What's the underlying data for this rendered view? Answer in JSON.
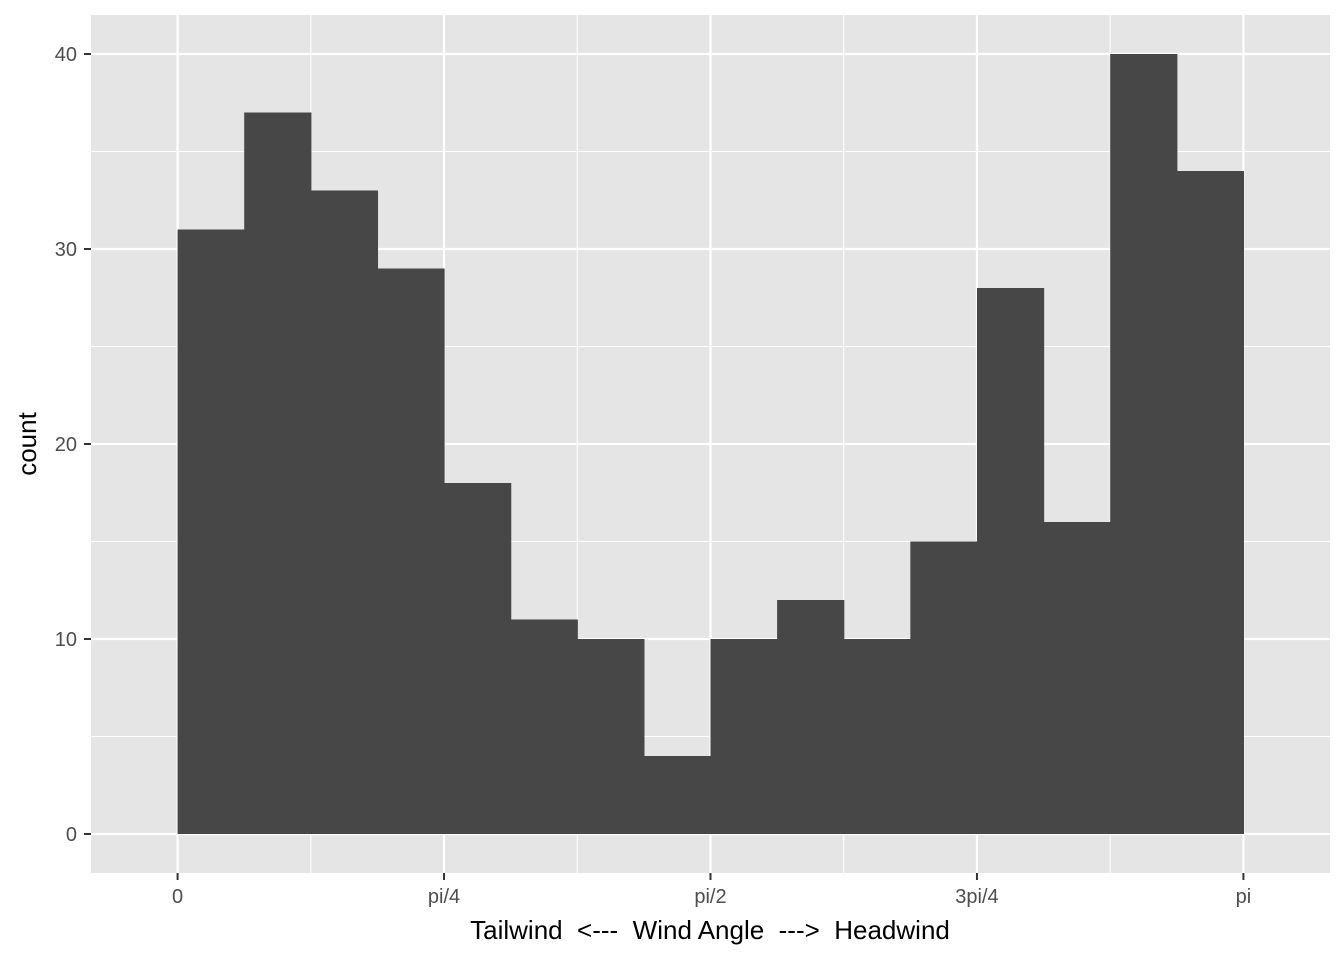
{
  "chart_data": {
    "type": "bar",
    "subtype": "histogram",
    "title": "",
    "xlabel": "Tailwind  <---  Wind Angle  --->  Headwind",
    "ylabel": "count",
    "xlim": [
      -0.2552,
      3.3968
    ],
    "ylim": [
      -2,
      42
    ],
    "x_ticks": [
      {
        "value": 0,
        "label": "0"
      },
      {
        "value": 0.785398,
        "label": "pi/4"
      },
      {
        "value": 1.570796,
        "label": "pi/2"
      },
      {
        "value": 2.356194,
        "label": "3pi/4"
      },
      {
        "value": 3.141593,
        "label": "pi"
      }
    ],
    "y_ticks": [
      {
        "value": 0,
        "label": "0"
      },
      {
        "value": 10,
        "label": "10"
      },
      {
        "value": 20,
        "label": "20"
      },
      {
        "value": 30,
        "label": "30"
      },
      {
        "value": 40,
        "label": "40"
      }
    ],
    "bin_width": 0.19635,
    "bins": [
      {
        "start": 0.0,
        "end": 0.19635,
        "count": 31
      },
      {
        "start": 0.19635,
        "end": 0.392699,
        "count": 37
      },
      {
        "start": 0.392699,
        "end": 0.589049,
        "count": 33
      },
      {
        "start": 0.589049,
        "end": 0.785398,
        "count": 29
      },
      {
        "start": 0.785398,
        "end": 0.981748,
        "count": 18
      },
      {
        "start": 0.981748,
        "end": 1.178097,
        "count": 11
      },
      {
        "start": 1.178097,
        "end": 1.374447,
        "count": 10
      },
      {
        "start": 1.374447,
        "end": 1.570796,
        "count": 4
      },
      {
        "start": 1.570796,
        "end": 1.767146,
        "count": 10
      },
      {
        "start": 1.767146,
        "end": 1.963495,
        "count": 12
      },
      {
        "start": 1.963495,
        "end": 2.159845,
        "count": 10
      },
      {
        "start": 2.159845,
        "end": 2.356194,
        "count": 15
      },
      {
        "start": 2.356194,
        "end": 2.552544,
        "count": 28
      },
      {
        "start": 2.552544,
        "end": 2.748894,
        "count": 16
      },
      {
        "start": 2.748894,
        "end": 2.945243,
        "count": 40
      },
      {
        "start": 2.945243,
        "end": 3.141593,
        "count": 34
      }
    ],
    "grid": true,
    "colors": {
      "panel_background": "#e5e5e5",
      "grid_major": "#ffffff",
      "bar_fill": "#474747",
      "tick_text": "#4d4d4d",
      "tick_mark": "#333333"
    }
  }
}
